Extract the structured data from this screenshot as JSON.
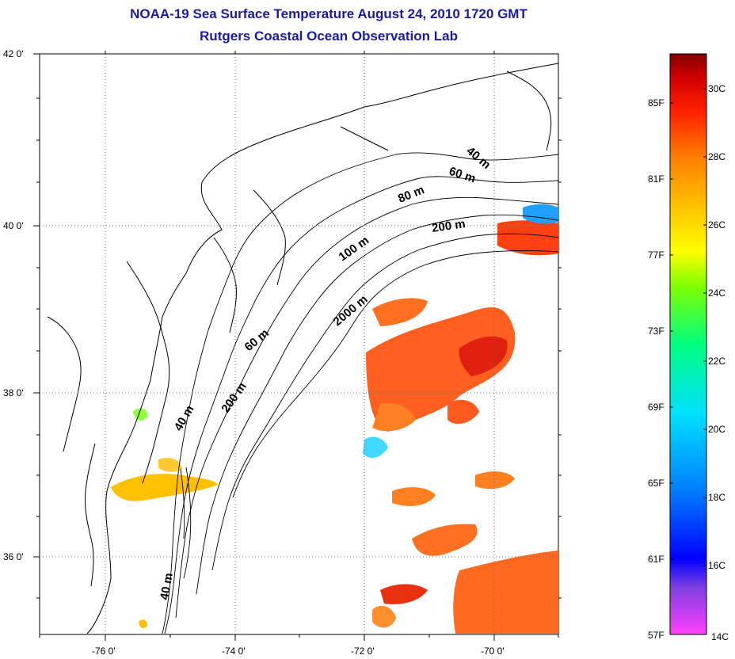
{
  "title": "NOAA-19 Sea Surface Temperature August 24, 2010 1720 GMT",
  "subtitle": "Rutgers Coastal Ocean Observation Lab",
  "map": {
    "lat_range": [
      35,
      42
    ],
    "lon_range": [
      -77,
      -69
    ],
    "lat_labels": [
      {
        "lat": 42,
        "text": "42 0'"
      },
      {
        "lat": 40,
        "text": "40 0'"
      },
      {
        "lat": 38,
        "text": "38 0'"
      },
      {
        "lat": 36,
        "text": "36 0'"
      }
    ],
    "lon_labels": [
      {
        "lon": -76,
        "text": "-76 0'"
      },
      {
        "lon": -74,
        "text": "-74 0'"
      },
      {
        "lon": -72,
        "text": "-72 0'"
      },
      {
        "lon": -70,
        "text": "-70 0'"
      }
    ],
    "depth_labels": [
      "40 m",
      "60 m",
      "80 m",
      "100 m",
      "200 m",
      "2000 m",
      "60 m",
      "40 m",
      "200 m",
      "40 m"
    ]
  },
  "colorbar": {
    "fahrenheit": [
      "85F",
      "81F",
      "77F",
      "73F",
      "69F",
      "65F",
      "61F",
      "57F"
    ],
    "celsius": [
      "30C",
      "28C",
      "26C",
      "24C",
      "22C",
      "20C",
      "18C",
      "16C",
      "14C"
    ],
    "stops": [
      "#ff40ff",
      "#8040e0",
      "#0000ff",
      "#0080ff",
      "#00e0ff",
      "#00ff80",
      "#80ff00",
      "#ffff00",
      "#ffc000",
      "#ff8000",
      "#ff2000",
      "#d00000",
      "#800000"
    ]
  }
}
